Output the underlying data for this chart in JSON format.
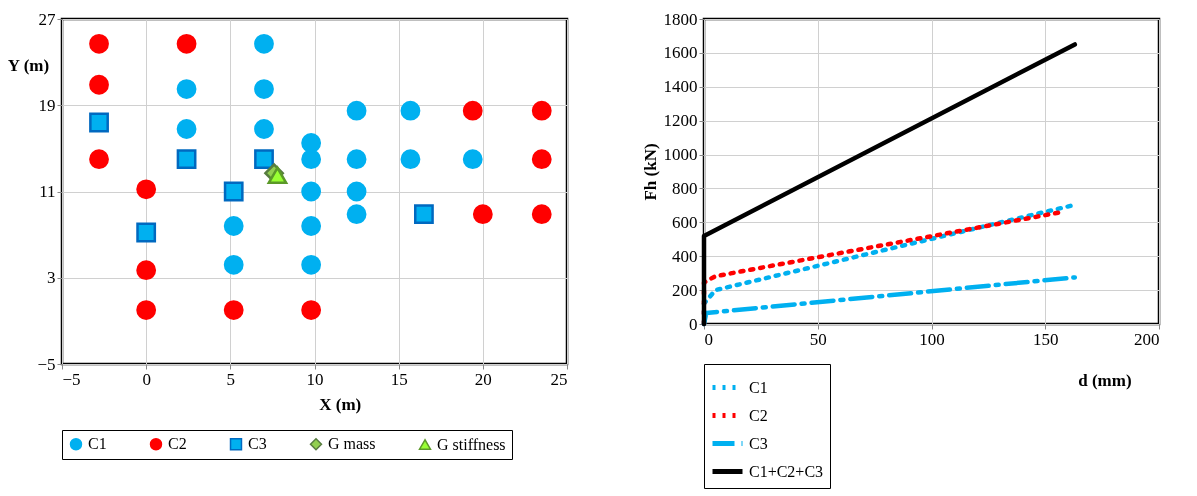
{
  "chart_data": [
    {
      "type": "scatter",
      "xlabel": "X (m)",
      "ylabel": "Y (m)",
      "xlim": [
        -5,
        25
      ],
      "ylim": [
        -5,
        27
      ],
      "xticks": [
        -5,
        0,
        5,
        10,
        15,
        20,
        25
      ],
      "yticks": [
        -5,
        3,
        11,
        19,
        27
      ],
      "grid": true,
      "legend": "bottom",
      "series": [
        {
          "name": "C1",
          "color": "#00b0f0",
          "marker": "circle",
          "x": [
            7.0,
            2.4,
            7.0,
            2.4,
            7.0,
            9.8,
            9.8,
            12.5,
            15.7,
            12.5,
            15.7,
            19.4,
            9.8,
            12.5,
            12.5,
            5.2,
            9.8,
            5.2,
            9.8
          ],
          "values": [
            24.7,
            20.5,
            20.5,
            16.8,
            16.8,
            15.5,
            14,
            18.5,
            18.5,
            14,
            14,
            14,
            11,
            11,
            8.9,
            7.8,
            7.8,
            4.2,
            4.2
          ]
        },
        {
          "name": "C2",
          "color": "#ff0000",
          "marker": "circle",
          "x": [
            -2.8,
            2.4,
            -2.8,
            -2.8,
            0,
            19.4,
            23.5,
            23.5,
            20.0,
            23.5,
            0,
            0,
            5.2,
            9.8
          ],
          "values": [
            24.7,
            24.7,
            20.9,
            14,
            11.2,
            18.5,
            18.5,
            14,
            8.9,
            8.9,
            3.7,
            0,
            0,
            0
          ]
        },
        {
          "name": "C3",
          "color": "#00b0f0",
          "marker": "square",
          "x": [
            -2.8,
            2.4,
            7.0,
            5.2,
            0,
            16.5
          ],
          "values": [
            17.4,
            14,
            14,
            11,
            7.2,
            8.9
          ]
        },
        {
          "name": "G mass",
          "color": "#92d050",
          "marker": "diamond",
          "x": [
            7.6
          ],
          "values": [
            12.7
          ]
        },
        {
          "name": "G stiffness",
          "color": "#99ff33",
          "marker": "triangle",
          "x": [
            7.8
          ],
          "values": [
            12.5
          ]
        }
      ]
    },
    {
      "type": "line",
      "xlabel": "d (mm)",
      "ylabel": "Fh (kN)",
      "xlim": [
        0,
        200
      ],
      "ylim": [
        0,
        1800
      ],
      "xticks": [
        0,
        50,
        100,
        150,
        200
      ],
      "yticks": [
        0,
        200,
        400,
        600,
        800,
        1000,
        1200,
        1400,
        1600,
        1800
      ],
      "grid": true,
      "legend": "bottom left",
      "series": [
        {
          "name": "C1",
          "color": "#00b0f0",
          "line_style": "dotted",
          "x": [
            0,
            0,
            5,
            162
          ],
          "values": [
            0,
            120,
            200,
            700
          ]
        },
        {
          "name": "C2",
          "color": "#ff0000",
          "line_style": "dotted",
          "x": [
            0,
            0,
            5,
            157
          ],
          "values": [
            0,
            245,
            282,
            660
          ]
        },
        {
          "name": "C3",
          "color": "#00b0f0",
          "line_style": "dashed",
          "x": [
            0,
            1,
            163
          ],
          "values": [
            0,
            65,
            275
          ]
        },
        {
          "name": "C1+C2+C3",
          "color": "#000000",
          "line_style": "solid",
          "x": [
            0,
            0,
            163
          ],
          "values": [
            0,
            520,
            1650
          ]
        }
      ]
    }
  ]
}
